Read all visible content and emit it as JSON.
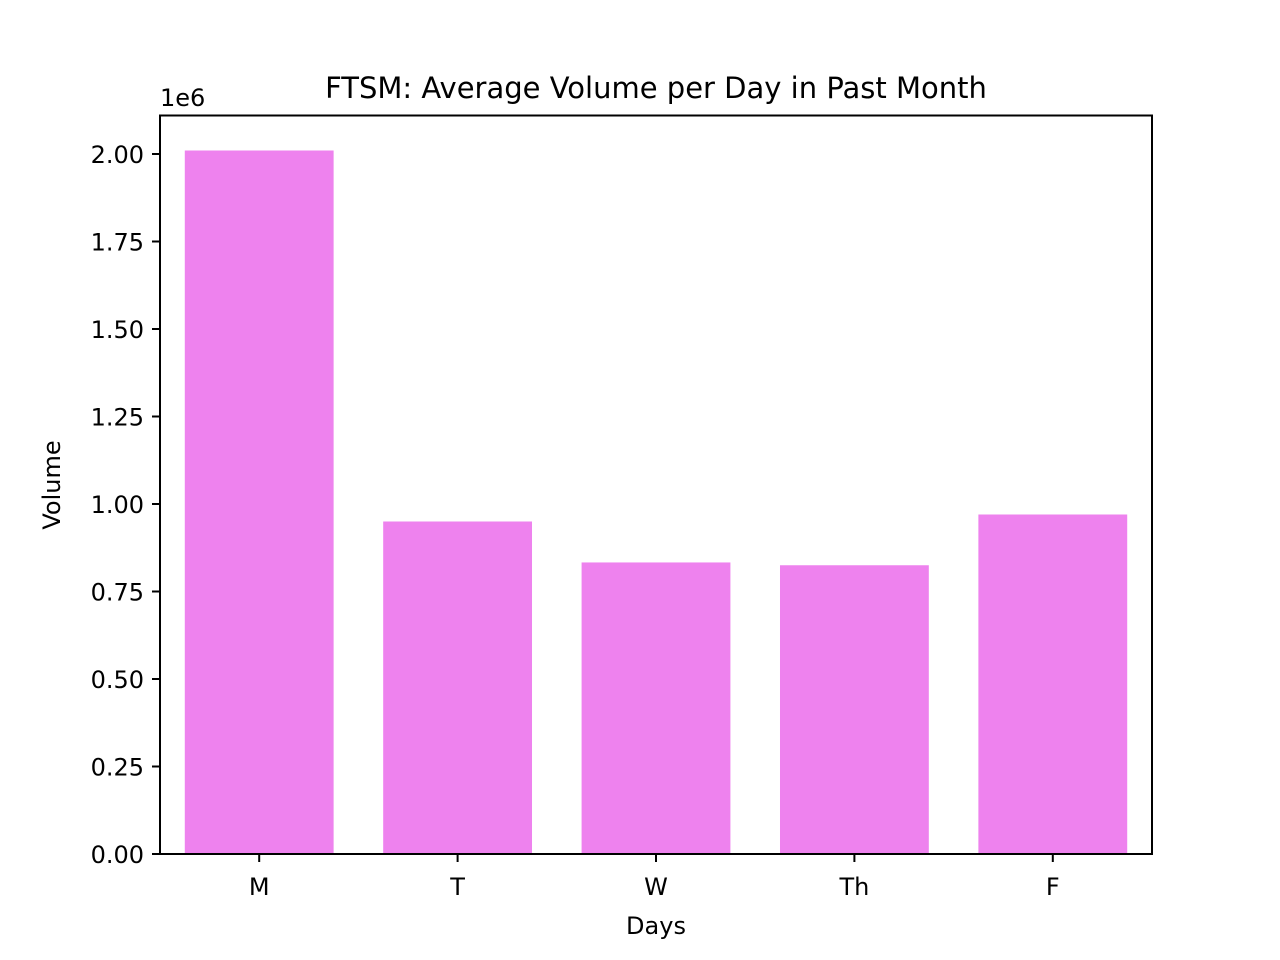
{
  "chart_data": {
    "type": "bar",
    "title": "FTSM: Average Volume per Day in Past Month",
    "xlabel": "Days",
    "ylabel": "Volume",
    "offset_label": "1e6",
    "categories": [
      "M",
      "T",
      "W",
      "Th",
      "F"
    ],
    "values": [
      2010000,
      950000,
      833000,
      825000,
      970000
    ],
    "ylim": [
      0,
      2110000
    ],
    "yticks": [
      0,
      250000,
      500000,
      750000,
      1000000,
      1250000,
      1500000,
      1750000,
      2000000
    ],
    "ytick_labels": [
      "0.00",
      "0.25",
      "0.50",
      "0.75",
      "1.00",
      "1.25",
      "1.50",
      "1.75",
      "2.00"
    ],
    "bar_color": "#ee82ee",
    "grid": false,
    "legend": "none"
  }
}
